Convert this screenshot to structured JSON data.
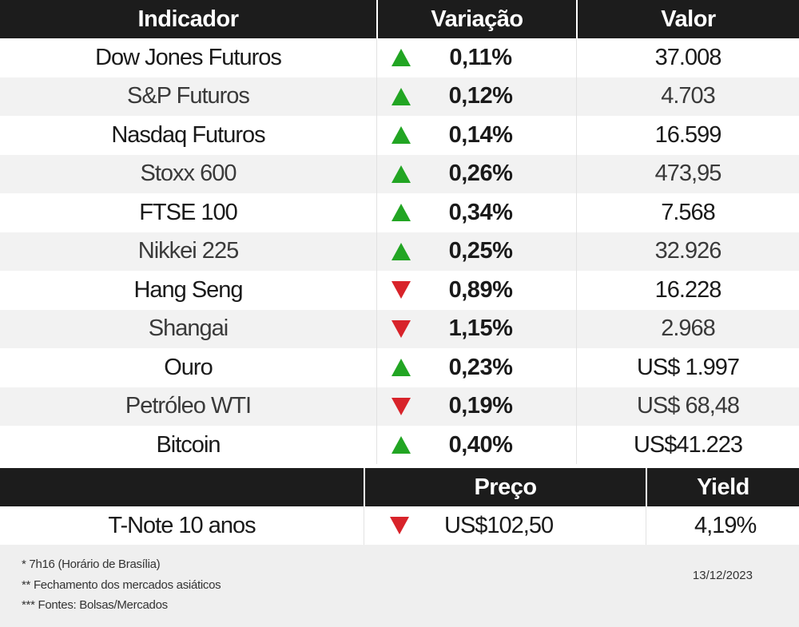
{
  "headers": {
    "indicator": "Indicador",
    "variation": "Variação",
    "value": "Valor"
  },
  "rows": [
    {
      "name": "Dow Jones Futuros",
      "dir": "up",
      "pct": "0,11%",
      "value": "37.008"
    },
    {
      "name": "S&P Futuros",
      "dir": "up",
      "pct": "0,12%",
      "value": "4.703"
    },
    {
      "name": "Nasdaq Futuros",
      "dir": "up",
      "pct": "0,14%",
      "value": "16.599"
    },
    {
      "name": "Stoxx 600",
      "dir": "up",
      "pct": "0,26%",
      "value": "473,95"
    },
    {
      "name": "FTSE 100",
      "dir": "up",
      "pct": "0,34%",
      "value": "7.568"
    },
    {
      "name": "Nikkei 225",
      "dir": "up",
      "pct": "0,25%",
      "value": "32.926"
    },
    {
      "name": "Hang Seng",
      "dir": "down",
      "pct": "0,89%",
      "value": "16.228"
    },
    {
      "name": "Shangai",
      "dir": "down",
      "pct": "1,15%",
      "value": "2.968"
    },
    {
      "name": "Ouro",
      "dir": "up",
      "pct": "0,23%",
      "value": "US$ 1.997"
    },
    {
      "name": "Petróleo WTI",
      "dir": "down",
      "pct": "0,19%",
      "value": "US$ 68,48"
    },
    {
      "name": "Bitcoin",
      "dir": "up",
      "pct": "0,40%",
      "value": "US$41.223"
    }
  ],
  "bond": {
    "headers": {
      "blank": "",
      "price": "Preço",
      "yield": "Yield"
    },
    "name": "T-Note 10 anos",
    "dir": "down",
    "price": "US$102,50",
    "yield": "4,19%"
  },
  "footer": {
    "notes": [
      "* 7h16 (Horário  de Brasília)",
      "** Fechamento dos mercados asiáticos",
      "*** Fontes: Bolsas/Mercados"
    ],
    "date": "13/12/2023"
  },
  "colors": {
    "up": "#22a523",
    "down": "#d8232a",
    "header_bg": "#1c1c1c"
  }
}
